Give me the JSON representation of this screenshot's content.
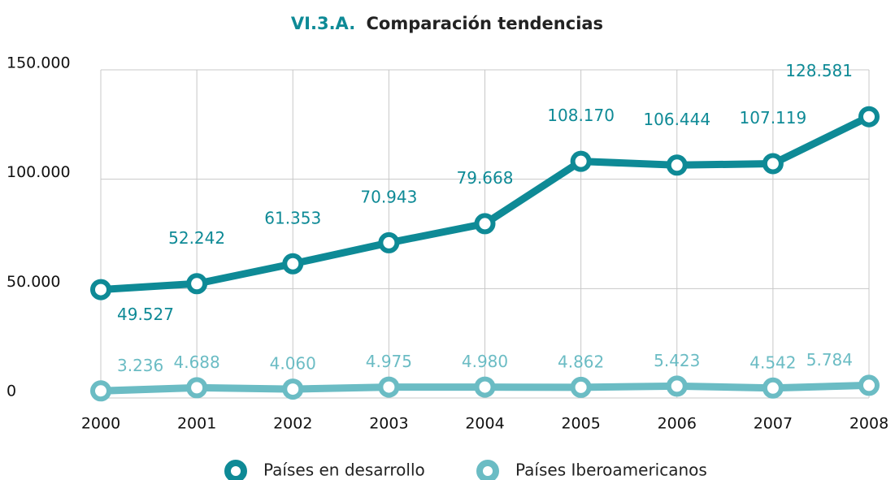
{
  "chart_data": {
    "type": "line",
    "title_number": "VI.3.A.",
    "title": "Comparación tendencias",
    "categories": [
      "2000",
      "2001",
      "2002",
      "2003",
      "2004",
      "2005",
      "2006",
      "2007",
      "2008"
    ],
    "series": [
      {
        "name": "Países en desarrollo",
        "color": "#0e8a96",
        "values": [
          49527,
          52242,
          61353,
          70943,
          79668,
          108170,
          106444,
          107119,
          128581
        ],
        "value_labels": [
          "49.527",
          "52.242",
          "61.353",
          "70.943",
          "79.668",
          "108.170",
          "106.444",
          "107.119",
          "128.581"
        ]
      },
      {
        "name": "Países Iberoamericanos",
        "color": "#6bbcc4",
        "values": [
          3236,
          4688,
          4060,
          4975,
          4980,
          4862,
          5423,
          4542,
          5784
        ],
        "value_labels": [
          "3.236",
          "4.688",
          "4.060",
          "4.975",
          "4.980",
          "4.862",
          "5.423",
          "4.542",
          "5.784"
        ]
      }
    ],
    "ylim": [
      0,
      150000
    ],
    "yticks": [
      {
        "value": 0,
        "label": "0"
      },
      {
        "value": 50000,
        "label": "50.000"
      },
      {
        "value": 100000,
        "label": "100.000"
      },
      {
        "value": 150000,
        "label": "150.000"
      }
    ],
    "grid": true,
    "legend": "bottom"
  }
}
